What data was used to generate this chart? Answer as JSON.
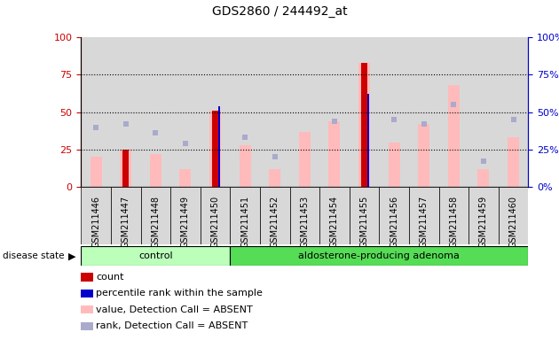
{
  "title": "GDS2860 / 244492_at",
  "samples": [
    "GSM211446",
    "GSM211447",
    "GSM211448",
    "GSM211449",
    "GSM211450",
    "GSM211451",
    "GSM211452",
    "GSM211453",
    "GSM211454",
    "GSM211455",
    "GSM211456",
    "GSM211457",
    "GSM211458",
    "GSM211459",
    "GSM211460"
  ],
  "control_count": 5,
  "adenoma_count": 10,
  "value_bars": [
    20,
    25,
    22,
    12,
    51,
    28,
    12,
    37,
    44,
    83,
    30,
    42,
    68,
    12,
    33
  ],
  "rank_dots": [
    40,
    42,
    36,
    29,
    null,
    33,
    20,
    null,
    44,
    null,
    45,
    42,
    55,
    17,
    45
  ],
  "count_bars": [
    null,
    25,
    null,
    null,
    51,
    null,
    null,
    null,
    null,
    83,
    null,
    null,
    null,
    null,
    null
  ],
  "percentile_bars": [
    null,
    null,
    null,
    null,
    54,
    null,
    null,
    null,
    null,
    62,
    null,
    null,
    null,
    null,
    null
  ],
  "ylim": [
    0,
    100
  ],
  "yticks": [
    0,
    25,
    50,
    75,
    100
  ],
  "control_color": "#bbffbb",
  "adenoma_color": "#55dd55",
  "value_bar_color": "#ffbbbb",
  "count_bar_color": "#cc0000",
  "rank_dot_color": "#aaaacc",
  "percentile_bar_color": "#0000cc",
  "axis_left_color": "#cc0000",
  "axis_right_color": "#0000cc",
  "col_bg_even": "#d8d8d8",
  "col_bg_odd": "#d8d8d8",
  "legend_items": [
    "count",
    "percentile rank within the sample",
    "value, Detection Call = ABSENT",
    "rank, Detection Call = ABSENT"
  ],
  "legend_colors": [
    "#cc0000",
    "#0000cc",
    "#ffbbbb",
    "#aaaacc"
  ]
}
